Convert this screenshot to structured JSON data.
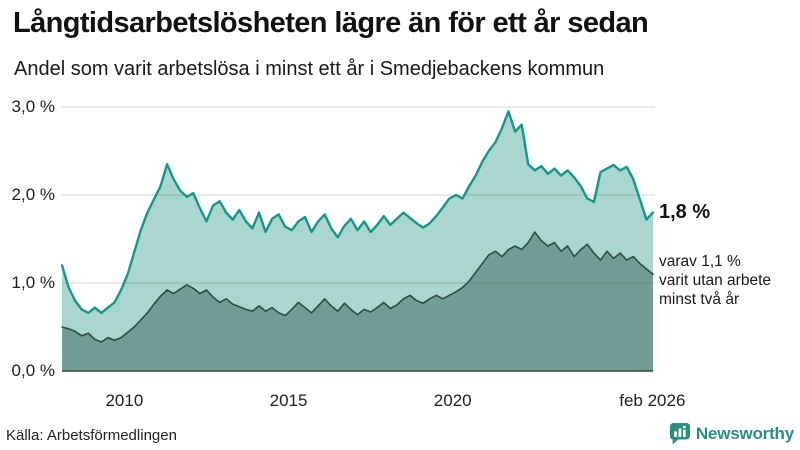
{
  "header": {
    "title": "Långtidsarbetslösheten lägre än för ett år sedan",
    "subtitle": "Andel som varit arbetslösa i minst ett år i Smedjebackens kommun"
  },
  "chart_data": {
    "type": "area",
    "title": "Långtidsarbetslösheten lägre än för ett år sedan",
    "subtitle": "Andel som varit arbetslösa i minst ett år i Smedjebackens kommun",
    "unit": "%",
    "x_start": 2008.1,
    "x_step": 0.2,
    "xlim": [
      2008.1,
      2026.1
    ],
    "ylim": [
      0,
      3.0
    ],
    "grid": true,
    "legend_position": "none",
    "yticks": [
      {
        "value": 0,
        "label": "0,0 %"
      },
      {
        "value": 1,
        "label": "1,0 %"
      },
      {
        "value": 2,
        "label": "2,0 %"
      },
      {
        "value": 3,
        "label": "3,0 %"
      }
    ],
    "xticks": [
      {
        "value": 2010.0,
        "label": "2010"
      },
      {
        "value": 2015.0,
        "label": "2015"
      },
      {
        "value": 2020.0,
        "label": "2020"
      },
      {
        "value": 2026.08,
        "label": "feb 2026"
      }
    ],
    "series": [
      {
        "name": "Arbetslösa minst ett år",
        "last_value": 1.8,
        "line_color": "#18968a",
        "fill_color": "#a9d6ce",
        "values": [
          1.2,
          0.95,
          0.8,
          0.7,
          0.66,
          0.72,
          0.66,
          0.72,
          0.78,
          0.92,
          1.1,
          1.35,
          1.6,
          1.8,
          1.95,
          2.1,
          2.35,
          2.18,
          2.05,
          1.98,
          2.02,
          1.85,
          1.7,
          1.88,
          1.93,
          1.8,
          1.72,
          1.83,
          1.7,
          1.62,
          1.8,
          1.58,
          1.73,
          1.78,
          1.64,
          1.6,
          1.7,
          1.75,
          1.58,
          1.7,
          1.78,
          1.62,
          1.52,
          1.65,
          1.73,
          1.6,
          1.7,
          1.58,
          1.66,
          1.76,
          1.66,
          1.73,
          1.8,
          1.74,
          1.68,
          1.63,
          1.68,
          1.76,
          1.86,
          1.96,
          2.0,
          1.96,
          2.1,
          2.22,
          2.38,
          2.5,
          2.6,
          2.76,
          2.95,
          2.72,
          2.8,
          2.35,
          2.28,
          2.33,
          2.24,
          2.3,
          2.22,
          2.28,
          2.2,
          2.1,
          1.96,
          1.92,
          2.26,
          2.3,
          2.34,
          2.28,
          2.32,
          2.18,
          1.95,
          1.72,
          1.8
        ]
      },
      {
        "name": "varav utan arbete minst två år",
        "last_value": 1.1,
        "line_color": "#2e4a46",
        "fill_color": "#709d96",
        "values": [
          0.5,
          0.48,
          0.45,
          0.4,
          0.43,
          0.36,
          0.33,
          0.38,
          0.35,
          0.38,
          0.44,
          0.5,
          0.58,
          0.66,
          0.76,
          0.85,
          0.92,
          0.88,
          0.93,
          0.98,
          0.94,
          0.88,
          0.92,
          0.84,
          0.78,
          0.82,
          0.76,
          0.73,
          0.7,
          0.68,
          0.74,
          0.68,
          0.72,
          0.66,
          0.63,
          0.7,
          0.78,
          0.72,
          0.66,
          0.74,
          0.82,
          0.74,
          0.68,
          0.77,
          0.7,
          0.64,
          0.7,
          0.67,
          0.72,
          0.78,
          0.71,
          0.75,
          0.82,
          0.86,
          0.8,
          0.77,
          0.82,
          0.86,
          0.82,
          0.86,
          0.9,
          0.95,
          1.02,
          1.12,
          1.22,
          1.32,
          1.36,
          1.3,
          1.38,
          1.42,
          1.38,
          1.46,
          1.58,
          1.48,
          1.42,
          1.46,
          1.36,
          1.42,
          1.3,
          1.38,
          1.44,
          1.34,
          1.26,
          1.36,
          1.28,
          1.34,
          1.26,
          1.3,
          1.22,
          1.16,
          1.1
        ]
      }
    ],
    "grid_color": "#dcdcdc",
    "baseline_color": "#3e3e3e"
  },
  "annotations": {
    "end_value_label": "1,8 %",
    "varav_line1": "varav 1,1 %",
    "varav_line2": "varit utan arbete",
    "varav_line3": "minst två år"
  },
  "footer": {
    "source": "Källa: Arbetsförmedlingen",
    "brand": "Newsworthy",
    "brand_color": "#2d8c81",
    "logo_icon": "bar-chart-speech-bubble"
  }
}
